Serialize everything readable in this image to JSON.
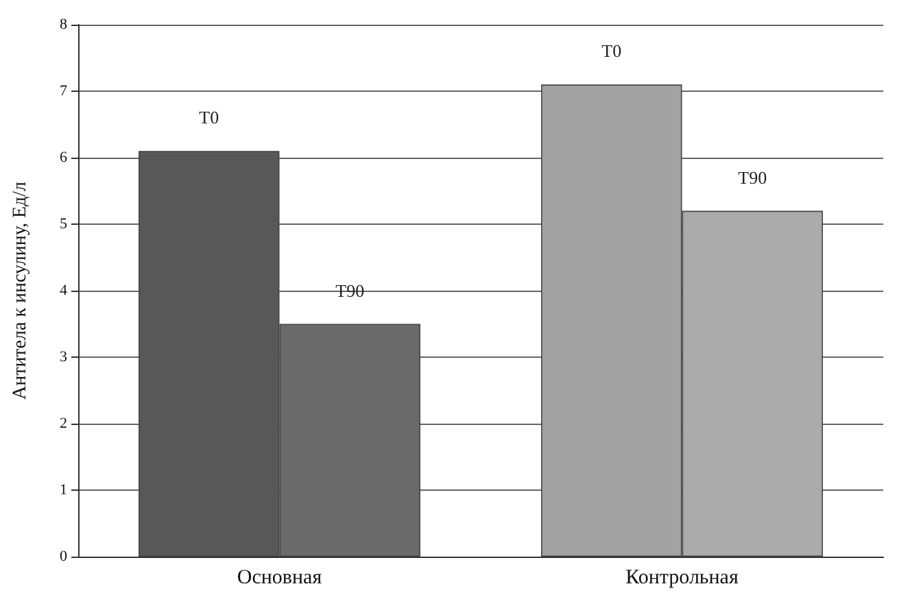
{
  "chart_data": {
    "type": "bar",
    "ylabel": "Антитела к инсулину, Ед/л",
    "categories": [
      "Основная",
      "Контрольная"
    ],
    "series": [
      {
        "name": "T0",
        "colors": [
          "#585858",
          "#a2a2a2"
        ],
        "values": [
          6.1,
          7.1
        ]
      },
      {
        "name": "T90",
        "colors": [
          "#6a6a6a",
          "#ababab"
        ],
        "values": [
          3.5,
          5.2
        ]
      }
    ],
    "ylim": [
      0,
      8
    ],
    "yticks": [
      0,
      1,
      2,
      3,
      4,
      5,
      6,
      7,
      8
    ],
    "grid": "y",
    "legend": false
  }
}
